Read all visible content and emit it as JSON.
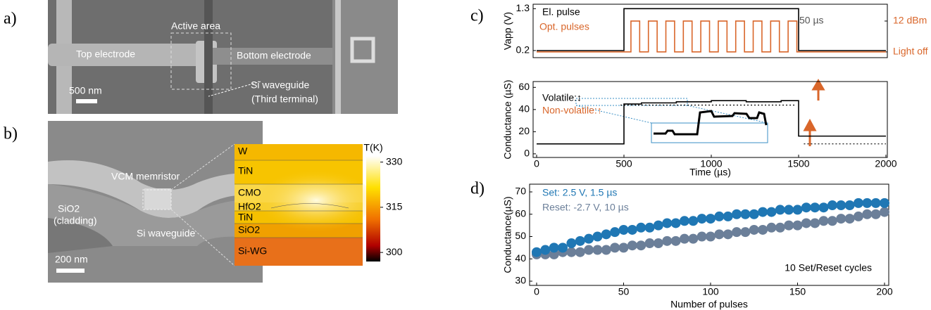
{
  "panel_labels": [
    "a)",
    "b)",
    "c)",
    "d)"
  ],
  "image_a": {
    "labels": [
      "Active area",
      "Top electrode",
      "Bottom electrode",
      "Si waveguide",
      "(Third terminal)"
    ],
    "scale_bar": "500 nm"
  },
  "image_b": {
    "labels": [
      "VCM memristor",
      "SiO2",
      "(cladding)",
      "Si waveguide"
    ],
    "scale_bar": "200 nm",
    "layers": [
      "W",
      "TiN",
      "CMO",
      "HfO2",
      "TiN",
      "SiO2",
      "Si-WG"
    ],
    "colorbar": {
      "label": "T(K)",
      "lim": [
        297,
        332
      ],
      "ticks": [
        330,
        315,
        300
      ]
    }
  },
  "chart_data": [
    {
      "type": "line",
      "ylabel": "Vapp (V)",
      "xlim": [
        0,
        2000
      ],
      "ylim": [
        0.05,
        1.38
      ],
      "yticks": [
        0.2,
        1.3
      ],
      "y2lim": [
        -0.14,
        1.5
      ],
      "y2ticks": [
        {
          "value": 0,
          "label": "Light off"
        },
        {
          "value": 1,
          "label": "12 dBm"
        }
      ],
      "legend": "top-left",
      "annotations": [
        "50 µs"
      ],
      "series": [
        {
          "name": "El. pulse",
          "color": "#000000",
          "x": [
            0,
            500,
            500,
            1500,
            1500,
            2000
          ],
          "values": [
            0.2,
            0.2,
            1.3,
            1.3,
            0.2,
            0.2
          ]
        },
        {
          "name": "Opt. pulses",
          "color": "#d9662a",
          "axis": "y2",
          "x": [
            0,
            540,
            540,
            590,
            590,
            640,
            640,
            690,
            690,
            740,
            740,
            790,
            790,
            840,
            840,
            890,
            890,
            940,
            940,
            990,
            990,
            1040,
            1040,
            1090,
            1090,
            1140,
            1140,
            1190,
            1190,
            1240,
            1240,
            1290,
            1290,
            1340,
            1340,
            1390,
            1390,
            1440,
            1440,
            1490,
            1490,
            2000
          ],
          "values": [
            0,
            0,
            1,
            1,
            0,
            0,
            1,
            1,
            0,
            0,
            1,
            1,
            0,
            0,
            1,
            1,
            0,
            0,
            1,
            1,
            0,
            0,
            1,
            1,
            0,
            0,
            1,
            1,
            0,
            0,
            1,
            1,
            0,
            0,
            1,
            1,
            0,
            0,
            1,
            1,
            0,
            0
          ]
        }
      ]
    },
    {
      "type": "line",
      "xlabel": "Time (µs)",
      "ylabel": "Conductance (µS)",
      "xlim": [
        0,
        2000
      ],
      "ylim": [
        -2,
        64
      ],
      "xticks": [
        0,
        500,
        1000,
        1500,
        2000
      ],
      "yticks": [
        0,
        20,
        40,
        60
      ],
      "annotations": [
        "Volatile:↕",
        "Non-volatile:↑"
      ],
      "annotation_colors": [
        "#000000",
        "#d9662a"
      ],
      "series": [
        {
          "color": "#000000",
          "x": [
            0,
            500,
            500,
            600,
            600,
            800,
            800,
            1000,
            1000,
            1200,
            1200,
            1400,
            1400,
            1500,
            1500,
            2000
          ],
          "values": [
            9,
            9,
            45,
            45,
            46,
            46,
            47,
            47,
            48,
            48,
            47,
            47,
            48,
            48,
            16,
            16
          ]
        },
        {
          "color": "#000000",
          "dash": true,
          "x": [
            480,
            1480
          ],
          "values": [
            44,
            44
          ]
        },
        {
          "color": "#000000",
          "dash": true,
          "x": [
            1530,
            2000
          ],
          "values": [
            9,
            9
          ]
        }
      ]
    },
    {
      "type": "scatter",
      "xlabel": "Number of pulses",
      "ylabel": "Conductance(µS)",
      "xlim": [
        0,
        200
      ],
      "ylim": [
        30,
        70
      ],
      "xticks": [
        0,
        50,
        100,
        150,
        200
      ],
      "yticks": [
        30,
        40,
        50,
        60,
        70
      ],
      "legend": "top-left",
      "annotations": [
        "10 Set/Reset cycles"
      ],
      "x": [
        0,
        5,
        10,
        15,
        20,
        25,
        30,
        35,
        40,
        45,
        50,
        55,
        60,
        65,
        70,
        75,
        80,
        85,
        90,
        95,
        100,
        105,
        110,
        115,
        120,
        125,
        130,
        135,
        140,
        145,
        150,
        155,
        160,
        165,
        170,
        175,
        180,
        185,
        190,
        195,
        200
      ],
      "series": [
        {
          "name": "Set: 2.5 V, 1.5 µs",
          "color": "#1f77b4",
          "values": [
            43,
            44,
            45,
            45,
            47,
            48,
            49,
            50,
            51,
            52,
            53,
            53,
            54,
            54,
            55,
            56,
            56,
            57,
            57,
            58,
            58,
            59,
            59,
            60,
            60,
            60,
            61,
            61,
            62,
            62,
            62,
            63,
            63,
            63,
            64,
            64,
            64,
            65,
            65,
            65,
            65
          ]
        },
        {
          "name": "Reset: -2.7 V, 10 µs",
          "color": "#6b7f99",
          "values": [
            42,
            42,
            42,
            43,
            43,
            43,
            44,
            44,
            44,
            45,
            45,
            46,
            46,
            47,
            47,
            48,
            48,
            49,
            49,
            50,
            50,
            51,
            51,
            52,
            52,
            53,
            53,
            54,
            54,
            55,
            55,
            56,
            56,
            57,
            57,
            58,
            58,
            59,
            60,
            60,
            61
          ]
        }
      ]
    }
  ]
}
